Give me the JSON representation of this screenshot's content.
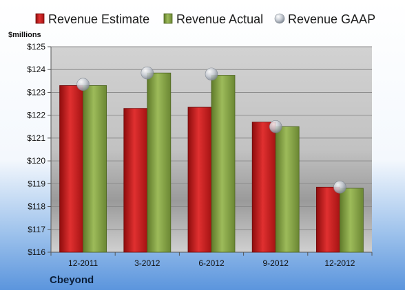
{
  "chart_data": {
    "type": "bar",
    "unit_label": "$millions",
    "company": "Cbeyond",
    "categories": [
      "12-2011",
      "3-2012",
      "6-2012",
      "9-2012",
      "12-2012"
    ],
    "series": [
      {
        "name": "Revenue Estimate",
        "kind": "bar",
        "color": "#cc1f1f",
        "values": [
          123.3,
          122.3,
          122.35,
          121.7,
          118.85
        ]
      },
      {
        "name": "Revenue Actual",
        "kind": "bar",
        "color": "#8aa84a",
        "values": [
          123.3,
          123.85,
          123.75,
          121.5,
          118.8
        ]
      },
      {
        "name": "Revenue GAAP",
        "kind": "marker",
        "color": "#b9bfc8",
        "values": [
          123.35,
          123.85,
          123.8,
          121.5,
          118.85
        ]
      }
    ],
    "ylim": [
      116,
      125
    ],
    "yticks": [
      "$116",
      "$117",
      "$118",
      "$119",
      "$120",
      "$121",
      "$122",
      "$123",
      "$124",
      "$125"
    ],
    "grid": true,
    "legend_position": "top"
  }
}
